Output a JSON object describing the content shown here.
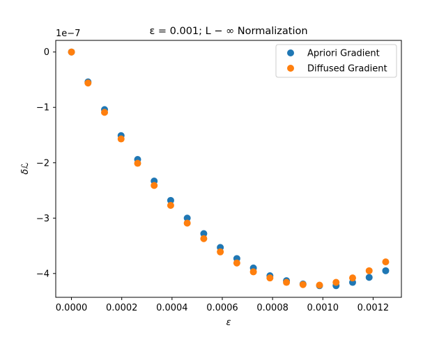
{
  "chart_data": {
    "type": "scatter",
    "title": "ε = 0.001; L − ∞ Normalization",
    "xlabel": "ε",
    "ylabel": "δℒ",
    "y_offset_label": "1e−7",
    "xlim": [
      -6.25e-05,
      0.0013125
    ],
    "ylim": [
      -4.43,
      0.21
    ],
    "x_ticks": [
      0,
      0.0002,
      0.0004,
      0.0006,
      0.0008,
      0.001,
      0.0012
    ],
    "x_tick_labels": [
      "0.0000",
      "0.0002",
      "0.0004",
      "0.0006",
      "0.0008",
      "0.0010",
      "0.0012"
    ],
    "y_ticks": [
      0,
      -1,
      -2,
      -3,
      -4
    ],
    "y_tick_labels": [
      "0",
      "−1",
      "−2",
      "−3",
      "−4"
    ],
    "grid": false,
    "legend_position": "top-right",
    "x": [
      0,
      6.58e-05,
      0.0001316,
      0.0001974,
      0.0002632,
      0.000329,
      0.0003947,
      0.0004605,
      0.0005263,
      0.0005921,
      0.0006579,
      0.0007237,
      0.0007895,
      0.0008553,
      0.0009211,
      0.0009868,
      0.0010526,
      0.0011184,
      0.0011842,
      0.00125
    ],
    "series": [
      {
        "name": "Apriori Gradient",
        "color": "#1f77b4",
        "values": [
          0,
          -0.54,
          -1.04,
          -1.51,
          -1.94,
          -2.33,
          -2.68,
          -3.0,
          -3.28,
          -3.53,
          -3.73,
          -3.9,
          -4.04,
          -4.13,
          -4.19,
          -4.22,
          -4.22,
          -4.16,
          -4.07,
          -3.95
        ]
      },
      {
        "name": "Diffused Gradient",
        "color": "#ff7f0e",
        "values": [
          0,
          -0.56,
          -1.09,
          -1.57,
          -2.01,
          -2.41,
          -2.77,
          -3.09,
          -3.37,
          -3.61,
          -3.81,
          -3.97,
          -4.08,
          -4.16,
          -4.2,
          -4.21,
          -4.16,
          -4.08,
          -3.95,
          -3.79
        ]
      }
    ]
  }
}
